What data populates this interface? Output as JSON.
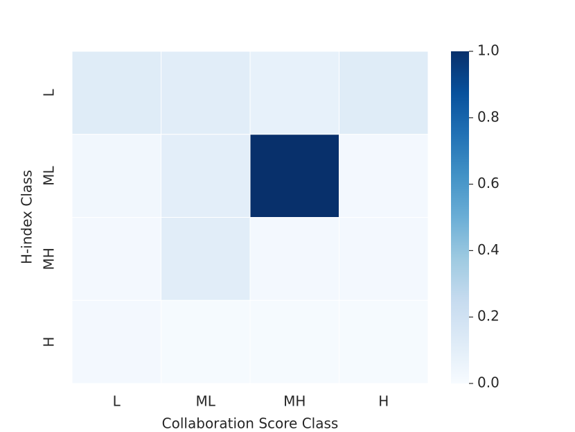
{
  "chart_data": {
    "type": "heatmap",
    "x_label": "Collaboration Score Class",
    "y_label": "H-index Class",
    "x_categories": [
      "L",
      "ML",
      "MH",
      "H"
    ],
    "y_categories": [
      "L",
      "ML",
      "MH",
      "H"
    ],
    "values": [
      [
        0.12,
        0.11,
        0.08,
        0.12
      ],
      [
        0.03,
        0.1,
        1.0,
        0.02
      ],
      [
        0.02,
        0.11,
        0.02,
        0.02
      ],
      [
        0.02,
        0.01,
        0.01,
        0.01
      ]
    ],
    "colormap": "Blues",
    "clim": [
      0,
      1
    ],
    "cticks": [
      {
        "value": 0,
        "label": "0.0"
      },
      0.2,
      0.4,
      0.6,
      0.8,
      {
        "value": 1,
        "label": "1.0"
      }
    ]
  }
}
